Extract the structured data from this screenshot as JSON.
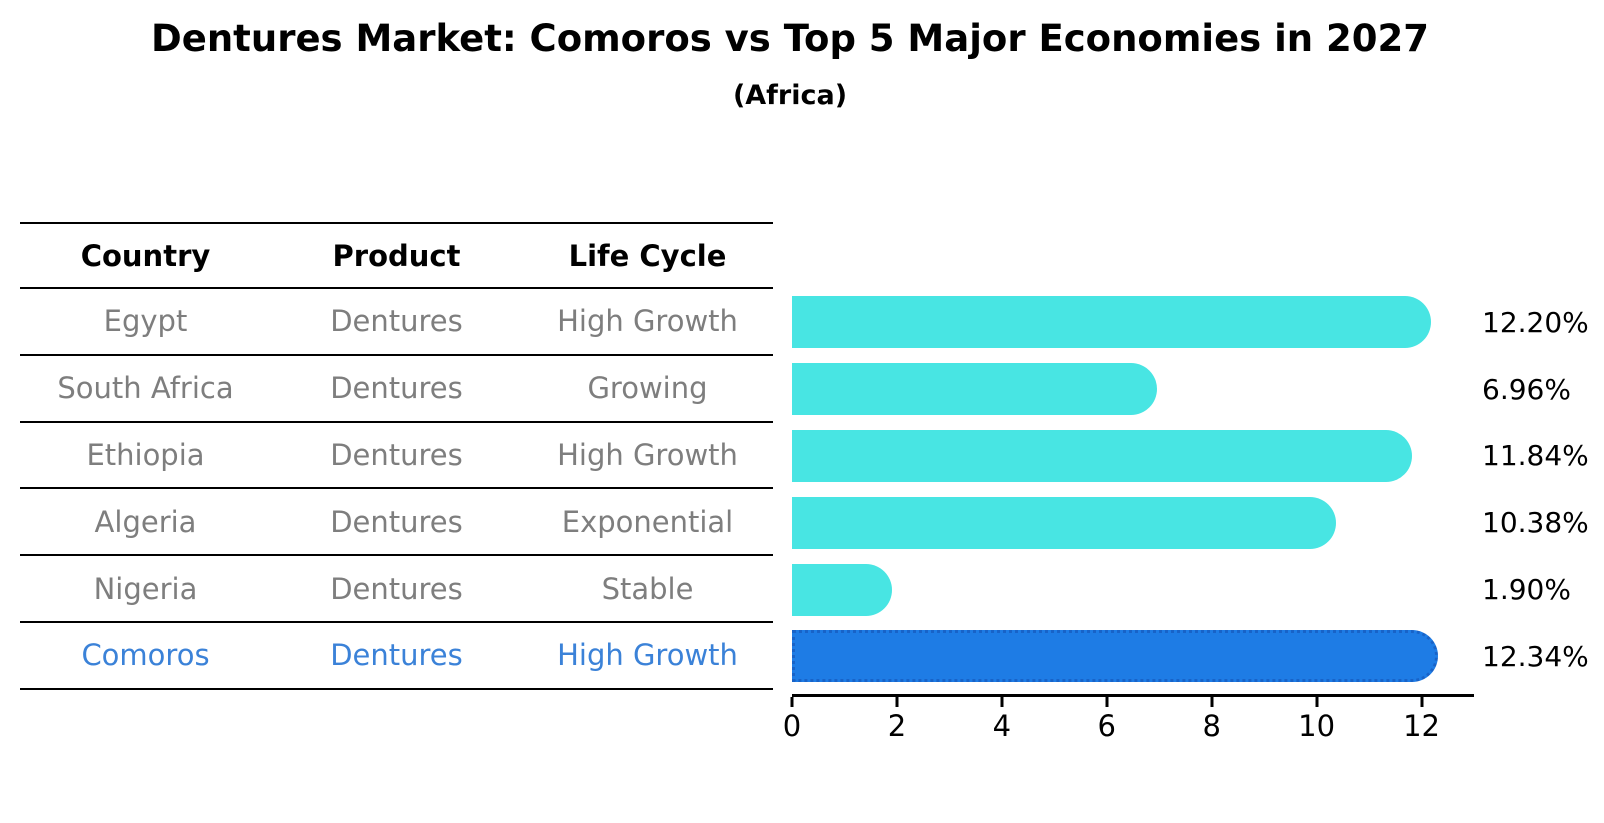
{
  "header": {
    "title": "Dentures Market: Comoros vs Top 5 Major Economies in 2027",
    "subtitle": "(Africa)"
  },
  "table": {
    "columns": [
      "Country",
      "Product",
      "Life Cycle"
    ],
    "rows": [
      {
        "country": "Egypt",
        "product": "Dentures",
        "life_cycle": "High Growth"
      },
      {
        "country": "South Africa",
        "product": "Dentures",
        "life_cycle": "Growing"
      },
      {
        "country": "Ethiopia",
        "product": "Dentures",
        "life_cycle": "High Growth"
      },
      {
        "country": "Algeria",
        "product": "Dentures",
        "life_cycle": "Exponential"
      },
      {
        "country": "Nigeria",
        "product": "Dentures",
        "life_cycle": "Stable"
      },
      {
        "country": "Comoros",
        "product": "Dentures",
        "life_cycle": "High Growth"
      }
    ],
    "highlight_row_index": 5
  },
  "chart_data": {
    "type": "bar",
    "orientation": "horizontal",
    "title": "Dentures Market: Comoros vs Top 5 Major Economies in 2027",
    "subtitle": "(Africa)",
    "categories": [
      "Egypt",
      "South Africa",
      "Ethiopia",
      "Algeria",
      "Nigeria",
      "Comoros"
    ],
    "values": [
      12.2,
      6.96,
      11.84,
      10.38,
      1.9,
      12.34
    ],
    "value_labels": [
      "12.20%",
      "6.96%",
      "11.84%",
      "10.38%",
      "1.90%",
      "12.34%"
    ],
    "xlim": [
      0,
      13
    ],
    "xticks": [
      "0",
      "2",
      "4",
      "6",
      "8",
      "10",
      "12"
    ],
    "grid": false,
    "legend": null,
    "highlight_index": 5,
    "value_label_position": "right-outside"
  },
  "colors": {
    "bar": "#48E5E3",
    "highlight_bar": "#1E7CE5",
    "highlight_bar_border": "#1863C8",
    "highlight_text": "#3B82D8",
    "row_text": "#7E7E7E",
    "heading_text": "#000000",
    "axis": "#000000"
  }
}
